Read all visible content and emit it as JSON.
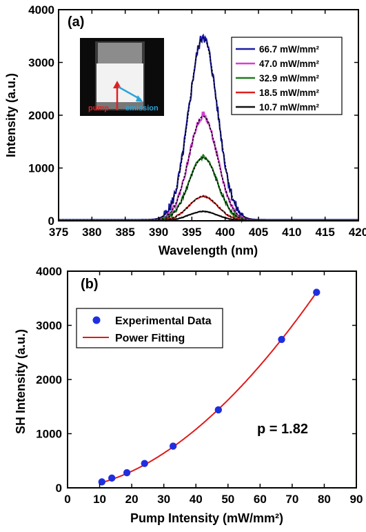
{
  "chart_data": [
    {
      "type": "line",
      "panel_label": "(a)",
      "xlabel": "Wavelength (nm)",
      "ylabel": "Intensity (a.u.)",
      "xlim": [
        375,
        420
      ],
      "ylim": [
        0,
        4000
      ],
      "xticks": [
        375,
        380,
        385,
        390,
        395,
        400,
        405,
        410,
        415,
        420
      ],
      "yticks": [
        0,
        1000,
        2000,
        3000,
        4000
      ],
      "legend_position": "top-right",
      "peak_center": 396.7,
      "series": [
        {
          "name": "66.7 mW/mm²",
          "color": "#1a1aa6",
          "peak": 3450,
          "baseline": 20
        },
        {
          "name": "47.0 mW/mm²",
          "color": "#d43fd4",
          "peak": 1970,
          "baseline": 10
        },
        {
          "name": "32.9 mW/mm²",
          "color": "#1e7a1e",
          "peak": 1190,
          "baseline": 5
        },
        {
          "name": "18.5 mW/mm²",
          "color": "#e02020",
          "peak": 460,
          "baseline": 3
        },
        {
          "name": "10.7 mW/mm²",
          "color": "#111111",
          "peak": 175,
          "baseline": 2
        }
      ],
      "fit_style": "dotted",
      "inset": {
        "labels": {
          "pump": "pump",
          "emission": "emission"
        }
      }
    },
    {
      "type": "scatter",
      "panel_label": "(b)",
      "xlabel": "Pump Intensity (mW/mm²)",
      "ylabel": "SH Intensity (a.u.)",
      "xlim": [
        0,
        90
      ],
      "ylim": [
        0,
        4000
      ],
      "xticks": [
        0,
        10,
        20,
        30,
        40,
        50,
        60,
        70,
        80,
        90
      ],
      "yticks": [
        0,
        1000,
        2000,
        3000,
        4000
      ],
      "legend_position": "top-left",
      "annotation": "p = 1.82",
      "series": [
        {
          "name": "Experimental Data",
          "color": "#1f2fe0",
          "x": [
            10.7,
            13.8,
            18.5,
            24.0,
            32.9,
            47.0,
            66.7,
            77.6
          ],
          "y": [
            110,
            180,
            280,
            450,
            770,
            1440,
            2740,
            3610
          ]
        },
        {
          "name": "Power Fitting",
          "color": "#e01a1a",
          "exponent": 1.82,
          "x_range": [
            10.7,
            78
          ]
        }
      ]
    }
  ]
}
